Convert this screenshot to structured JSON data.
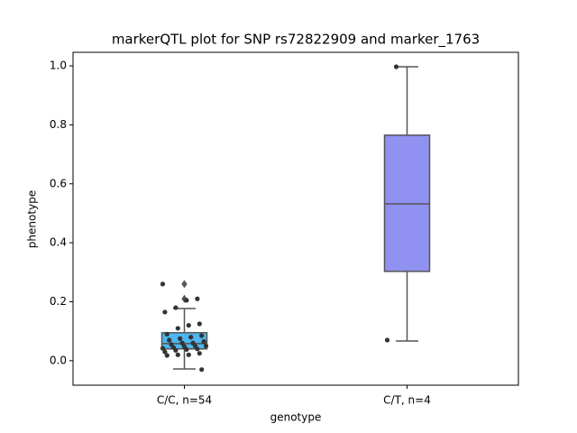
{
  "chart_data": {
    "type": "box",
    "title": "markerQTL plot for SNP rs72822909 and marker_1763",
    "x_label": "genotype",
    "y_label": "phenotype",
    "categories": [
      "C/C, n=54",
      "C/T, n=4"
    ],
    "ylim": [
      -0.083,
      1.046
    ],
    "yticks": [
      {
        "value": 0,
        "label": "0.0"
      },
      0.2,
      0.4,
      0.6,
      0.8,
      {
        "value": 1,
        "label": "1.0"
      }
    ],
    "boxes": [
      {
        "color": "#4cb6ee",
        "whislo": -0.028,
        "q1": 0.04,
        "med": 0.058,
        "q3": 0.095,
        "whishi": 0.177,
        "fliers": [
          0.26,
          0.21
        ],
        "points": [
          0.26,
          0.21,
          0.205,
          0.18,
          0.165,
          0.125,
          0.12,
          0.11,
          0.09,
          0.085,
          0.08,
          0.075,
          0.07,
          0.065,
          0.06,
          0.06,
          0.055,
          0.05,
          0.05,
          0.048,
          0.045,
          0.042,
          0.04,
          0.038,
          0.035,
          0.03,
          0.025,
          0.02,
          0.02,
          0.018,
          -0.03
        ]
      },
      {
        "color": "#9191f1",
        "whislo": 0.067,
        "q1": 0.303,
        "med": 0.532,
        "q3": 0.765,
        "whishi": 0.997,
        "fliers": [],
        "points": [
          0.997,
          0.07
        ]
      }
    ]
  }
}
